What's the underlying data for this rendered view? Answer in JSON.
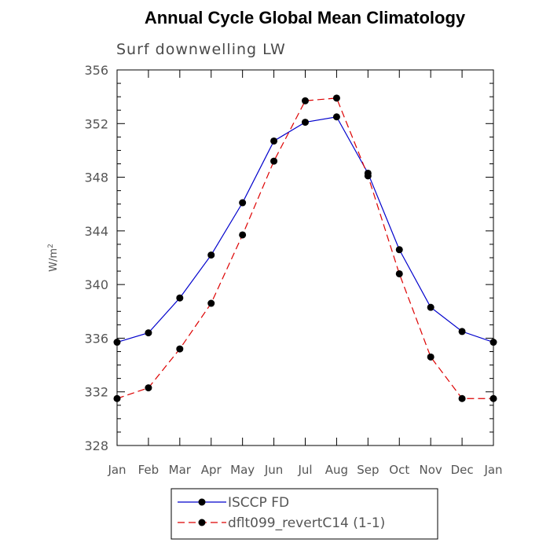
{
  "chart_data": {
    "type": "line",
    "title": "Annual Cycle Global Mean Climatology",
    "subtitle": "Surf downwelling LW",
    "xlabel": "",
    "ylabel": "W/m",
    "ylabel_superscript": "2",
    "categories": [
      "Jan",
      "Feb",
      "Mar",
      "Apr",
      "May",
      "Jun",
      "Jul",
      "Aug",
      "Sep",
      "Oct",
      "Nov",
      "Dec",
      "Jan"
    ],
    "ylim": [
      328,
      356
    ],
    "yticks": [
      328,
      332,
      336,
      340,
      344,
      348,
      352,
      356
    ],
    "grid": false,
    "legend_position": "bottom-center",
    "series": [
      {
        "name": "ISCCP FD",
        "color": "#0000cc",
        "dash": "solid",
        "marker": "filled-circle",
        "values": [
          335.7,
          336.4,
          339.0,
          342.2,
          346.1,
          350.7,
          352.1,
          352.5,
          348.3,
          342.6,
          338.3,
          336.5,
          335.7
        ]
      },
      {
        "name": "dflt099_revertC14 (1-1)",
        "color": "#dd0000",
        "dash": "dashed",
        "marker": "filled-circle",
        "values": [
          331.5,
          332.3,
          335.2,
          338.6,
          343.7,
          349.2,
          353.7,
          353.9,
          348.1,
          340.8,
          334.6,
          331.5,
          331.5
        ]
      }
    ]
  }
}
